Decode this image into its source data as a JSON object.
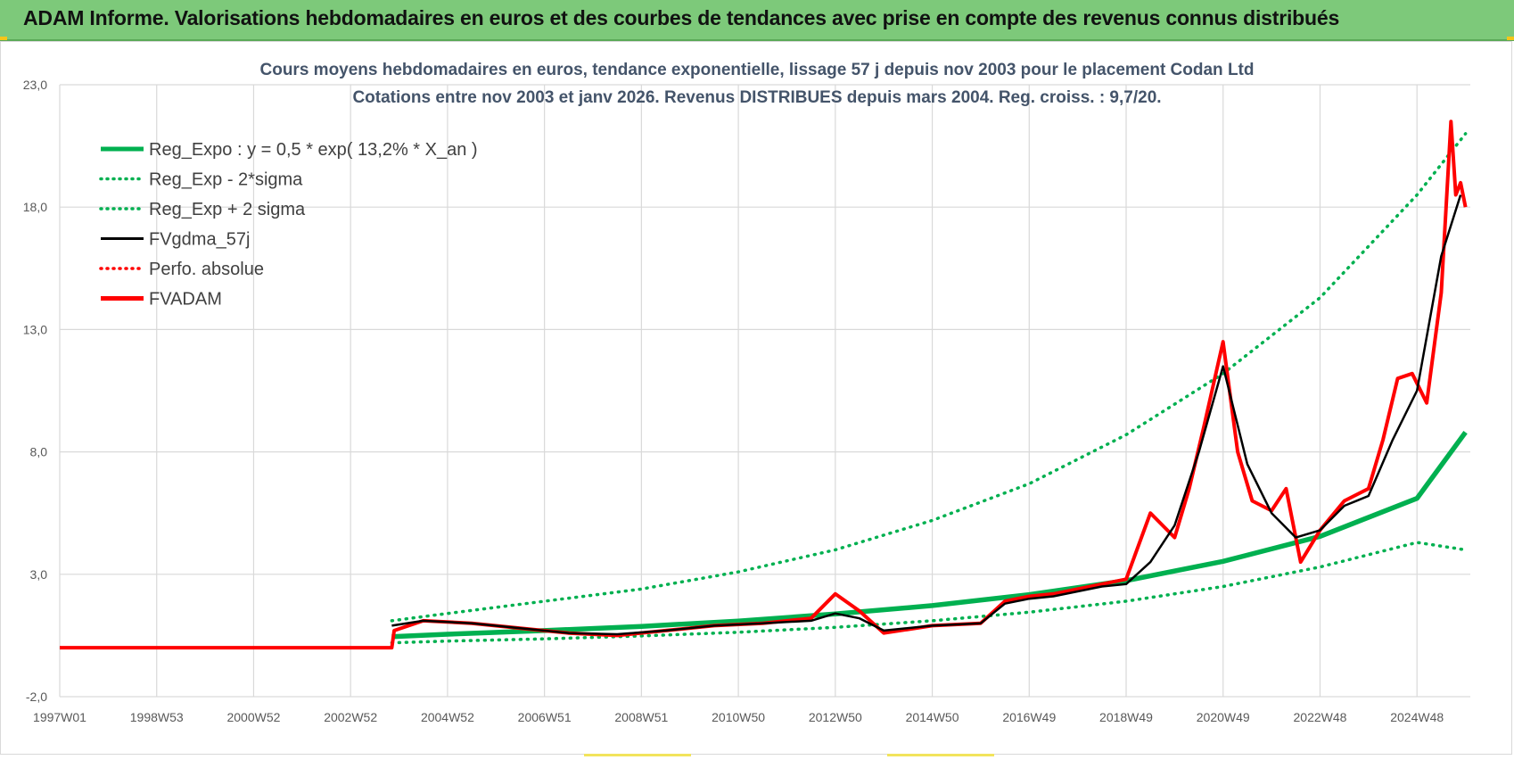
{
  "header": {
    "title": "ADAM Informe. Valorisations hebdomadaires en euros et des courbes de tendances avec prise en compte des revenus connus distribués"
  },
  "colors": {
    "banner": "#7dc97a",
    "reg_expo": "#00b050",
    "sigma": "#00b050",
    "fvgdma": "#000000",
    "perfo": "#ff0000",
    "fvadam": "#ff0000"
  },
  "chart_data": {
    "type": "line",
    "title_line1": "Cours moyens hebdomadaires en euros, tendance exponentielle, lissage 57 j depuis nov 2003 pour le placement Codan Ltd",
    "title_line2": "Cotations entre nov 2003 et janv 2026. Revenus DISTRIBUES depuis mars 2004. Reg. croiss. : 9,7/20.",
    "ylim": [
      -2,
      23
    ],
    "y_ticks": [
      "-2,0",
      "3,0",
      "8,0",
      "13,0",
      "18,0",
      "23,0"
    ],
    "y_tick_values": [
      -2,
      3,
      8,
      13,
      18,
      23
    ],
    "x_range": [
      1997.0,
      2026.1
    ],
    "x_ticks": [
      "1997W01",
      "1998W53",
      "2000W52",
      "2002W52",
      "2004W52",
      "2006W51",
      "2008W51",
      "2010W50",
      "2012W50",
      "2014W50",
      "2016W49",
      "2018W49",
      "2020W49",
      "2022W48",
      "2024W48"
    ],
    "x_tick_years": [
      1997.0,
      1999.0,
      2001.0,
      2003.0,
      2005.0,
      2007.0,
      2009.0,
      2011.0,
      2013.0,
      2015.0,
      2017.0,
      2019.0,
      2021.0,
      2023.0,
      2025.0
    ],
    "legend": [
      {
        "key": "reg_expo",
        "label": "Reg_Expo : y = 0,5 * exp( 13,2% *  X_an )",
        "style": "solid-thick",
        "color": "#00b050"
      },
      {
        "key": "reg_minus",
        "label": "Reg_Exp - 2*sigma",
        "style": "dotted",
        "color": "#00b050"
      },
      {
        "key": "reg_plus",
        "label": "Reg_Exp + 2 sigma",
        "style": "dotted",
        "color": "#00b050"
      },
      {
        "key": "fvgdma",
        "label": "FVgdma_57j",
        "style": "solid",
        "color": "#000000"
      },
      {
        "key": "perfo",
        "label": "Perfo. absolue",
        "style": "dotted",
        "color": "#ff0000"
      },
      {
        "key": "fvadam",
        "label": "FVADAM",
        "style": "solid-thick",
        "color": "#ff0000"
      }
    ],
    "series": [
      {
        "name": "Reg_Expo",
        "x": [
          2003.85,
          2005,
          2007,
          2009,
          2011,
          2013,
          2015,
          2017,
          2019,
          2021,
          2023,
          2025,
          2026.0
        ],
        "y": [
          0.45,
          0.55,
          0.7,
          0.87,
          1.09,
          1.38,
          1.72,
          2.17,
          2.74,
          3.53,
          4.55,
          6.1,
          8.8
        ]
      },
      {
        "name": "Reg_Exp - 2*sigma",
        "x": [
          2003.85,
          2005,
          2007,
          2009,
          2011,
          2013,
          2015,
          2017,
          2019,
          2021,
          2023,
          2025,
          2026.0
        ],
        "y": [
          0.2,
          0.27,
          0.36,
          0.48,
          0.63,
          0.83,
          1.1,
          1.45,
          1.9,
          2.5,
          3.3,
          4.3,
          4.0
        ]
      },
      {
        "name": "Reg_Exp + 2 sigma",
        "x": [
          2003.85,
          2005,
          2007,
          2009,
          2011,
          2013,
          2015,
          2017,
          2019,
          2021,
          2023,
          2025,
          2026.0
        ],
        "y": [
          1.1,
          1.4,
          1.9,
          2.4,
          3.1,
          4.0,
          5.2,
          6.7,
          8.7,
          11.2,
          14.3,
          18.5,
          21.0
        ]
      },
      {
        "name": "FVgdma_57j",
        "x": [
          2003.85,
          2004.5,
          2005.5,
          2006.5,
          2007.5,
          2008.5,
          2009.5,
          2010.5,
          2011.5,
          2012.5,
          2013.0,
          2013.5,
          2014.0,
          2015.0,
          2016.0,
          2016.5,
          2017.0,
          2017.5,
          2018.0,
          2018.5,
          2019.0,
          2019.5,
          2020.0,
          2020.5,
          2021.0,
          2021.5,
          2022.0,
          2022.5,
          2023.0,
          2023.5,
          2024.0,
          2024.5,
          2025.0,
          2025.5,
          2025.9
        ],
        "y": [
          0.9,
          1.1,
          1.0,
          0.8,
          0.6,
          0.55,
          0.7,
          0.9,
          1.0,
          1.1,
          1.4,
          1.2,
          0.7,
          0.9,
          1.0,
          1.8,
          2.0,
          2.1,
          2.3,
          2.5,
          2.6,
          3.5,
          5.0,
          8.0,
          11.5,
          7.5,
          5.5,
          4.5,
          4.8,
          5.8,
          6.2,
          8.5,
          10.5,
          16.0,
          18.5
        ]
      },
      {
        "name": "FVADAM",
        "x": [
          1997.0,
          2003.85,
          2003.9,
          2004.5,
          2005.5,
          2006.5,
          2007.5,
          2008.5,
          2009.5,
          2010.5,
          2011.5,
          2012.5,
          2013.0,
          2013.5,
          2014.0,
          2015.0,
          2016.0,
          2016.5,
          2017.0,
          2017.5,
          2018.0,
          2018.5,
          2019.0,
          2019.5,
          2020.0,
          2020.3,
          2020.6,
          2021.0,
          2021.3,
          2021.6,
          2022.0,
          2022.3,
          2022.6,
          2023.0,
          2023.5,
          2024.0,
          2024.3,
          2024.6,
          2024.9,
          2025.2,
          2025.5,
          2025.7,
          2025.8,
          2025.9,
          2026.0
        ],
        "y": [
          0,
          0,
          0.7,
          1.1,
          1.0,
          0.8,
          0.6,
          0.5,
          0.7,
          0.9,
          1.0,
          1.2,
          2.2,
          1.5,
          0.6,
          0.9,
          1.0,
          1.9,
          2.1,
          2.2,
          2.4,
          2.6,
          2.8,
          5.5,
          4.5,
          6.5,
          9.0,
          12.5,
          8.0,
          6.0,
          5.6,
          6.5,
          3.5,
          4.8,
          6.0,
          6.5,
          8.5,
          11.0,
          11.2,
          10.0,
          14.5,
          21.5,
          18.5,
          19.0,
          18.0
        ]
      }
    ]
  }
}
